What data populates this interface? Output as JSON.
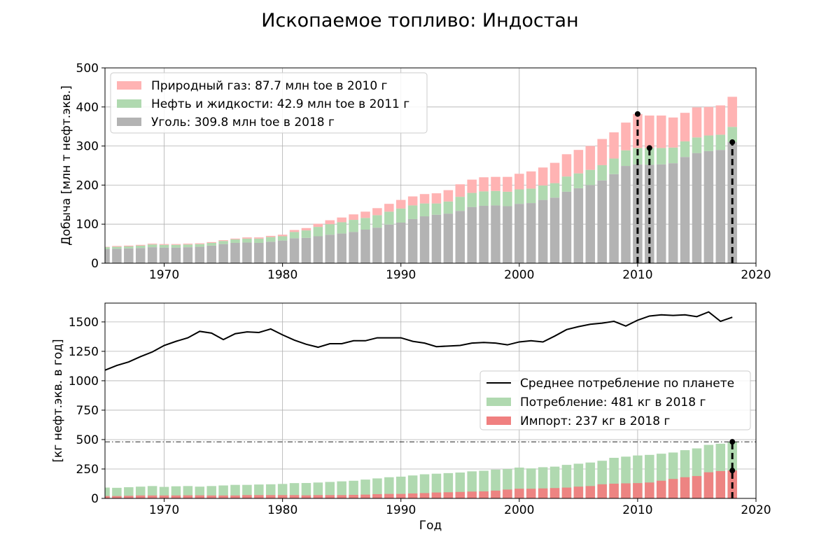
{
  "figure": {
    "title": "Ископаемое топливо: Индостан"
  },
  "chart_data": [
    {
      "type": "bar",
      "stacked": true,
      "xlim": [
        1965,
        2020
      ],
      "ylim": [
        0,
        500
      ],
      "xticks": [
        1970,
        1980,
        1990,
        2000,
        2010,
        2020
      ],
      "yticks": [
        0,
        100,
        200,
        300,
        400,
        500
      ],
      "ylabel": "Добыча [млн т нефт.экв.]",
      "xlabel": "",
      "grid": true,
      "legend_position": "top-left",
      "x": [
        1965,
        1966,
        1967,
        1968,
        1969,
        1970,
        1971,
        1972,
        1973,
        1974,
        1975,
        1976,
        1977,
        1978,
        1979,
        1980,
        1981,
        1982,
        1983,
        1984,
        1985,
        1986,
        1987,
        1988,
        1989,
        1990,
        1991,
        1992,
        1993,
        1994,
        1995,
        1996,
        1997,
        1998,
        1999,
        2000,
        2001,
        2002,
        2003,
        2004,
        2005,
        2006,
        2007,
        2008,
        2009,
        2010,
        2011,
        2012,
        2013,
        2014,
        2015,
        2016,
        2017,
        2018
      ],
      "series": [
        {
          "name": "Уголь: 309.8 млн toe в 2018 г",
          "color": "#b3b3b3",
          "values": [
            36,
            37,
            38,
            39,
            41,
            40,
            40,
            41,
            42,
            45,
            49,
            52,
            53,
            52,
            55,
            58,
            64,
            65,
            69,
            73,
            76,
            80,
            86,
            91,
            99,
            104,
            113,
            120,
            124,
            127,
            134,
            144,
            147,
            148,
            146,
            152,
            154,
            162,
            168,
            183,
            192,
            200,
            212,
            228,
            249,
            253,
            252,
            253,
            256,
            272,
            282,
            287,
            290,
            310
          ]
        },
        {
          "name": "Нефть и жидкости: 42.9 млн toe в 2011 г",
          "color": "#b0d9b0",
          "values": [
            5,
            5,
            5,
            6,
            7,
            7,
            7,
            7,
            7,
            7,
            8,
            9,
            10,
            11,
            12,
            11,
            16,
            19,
            24,
            27,
            29,
            31,
            30,
            32,
            33,
            36,
            35,
            33,
            29,
            31,
            36,
            36,
            37,
            37,
            37,
            37,
            37,
            37,
            37,
            39,
            38,
            39,
            39,
            40,
            40,
            42,
            43,
            42,
            40,
            40,
            40,
            40,
            39,
            39
          ]
        },
        {
          "name": "Природный газ: 87.7 млн toe в 2010 г",
          "color": "#ffb3b3",
          "values": [
            1,
            2,
            2,
            2,
            2,
            2,
            2,
            2,
            2,
            2,
            2,
            2,
            3,
            3,
            3,
            4,
            5,
            6,
            8,
            10,
            12,
            14,
            16,
            18,
            20,
            22,
            23,
            24,
            26,
            29,
            32,
            34,
            36,
            36,
            38,
            40,
            44,
            46,
            52,
            57,
            60,
            61,
            67,
            67,
            71,
            87,
            83,
            83,
            77,
            73,
            77,
            73,
            75,
            77
          ]
        }
      ],
      "annotations": [
        {
          "year": 2010,
          "value": 382
        },
        {
          "year": 2011,
          "value": 295
        },
        {
          "year": 2018,
          "value": 310
        }
      ]
    },
    {
      "type": "bar+line",
      "xlim": [
        1965,
        2020
      ],
      "ylim": [
        0,
        1660
      ],
      "xticks": [
        1970,
        1980,
        1990,
        2000,
        2010,
        2020
      ],
      "yticks": [
        0,
        250,
        500,
        750,
        1000,
        1250,
        1500
      ],
      "ylabel": "[кг нефт.экв. в год]",
      "xlabel": "Год",
      "grid": true,
      "legend_position": "center-right",
      "reference_line": 481,
      "x": [
        1965,
        1966,
        1967,
        1968,
        1969,
        1970,
        1971,
        1972,
        1973,
        1974,
        1975,
        1976,
        1977,
        1978,
        1979,
        1980,
        1981,
        1982,
        1983,
        1984,
        1985,
        1986,
        1987,
        1988,
        1989,
        1990,
        1991,
        1992,
        1993,
        1994,
        1995,
        1996,
        1997,
        1998,
        1999,
        2000,
        2001,
        2002,
        2003,
        2004,
        2005,
        2006,
        2007,
        2008,
        2009,
        2010,
        2011,
        2012,
        2013,
        2014,
        2015,
        2016,
        2017,
        2018
      ],
      "series": [
        {
          "name": "Среднее потребление по планете",
          "type": "line",
          "color": "#000000",
          "values": [
            1090,
            1130,
            1160,
            1205,
            1245,
            1300,
            1335,
            1365,
            1420,
            1405,
            1350,
            1400,
            1415,
            1410,
            1440,
            1390,
            1345,
            1310,
            1285,
            1315,
            1315,
            1340,
            1340,
            1365,
            1365,
            1365,
            1335,
            1320,
            1290,
            1295,
            1300,
            1320,
            1325,
            1320,
            1305,
            1330,
            1340,
            1330,
            1380,
            1435,
            1460,
            1480,
            1490,
            1505,
            1465,
            1515,
            1550,
            1560,
            1555,
            1560,
            1545,
            1585,
            1505,
            1540
          ]
        },
        {
          "name": "Потребление: 481 кг в 2018 г",
          "type": "bar",
          "color": "#b0d9b0",
          "values": [
            92,
            90,
            95,
            100,
            105,
            98,
            103,
            105,
            100,
            105,
            110,
            115,
            115,
            118,
            120,
            123,
            130,
            131,
            135,
            140,
            145,
            150,
            160,
            170,
            180,
            185,
            195,
            205,
            210,
            215,
            220,
            230,
            235,
            245,
            250,
            262,
            255,
            265,
            270,
            285,
            295,
            305,
            320,
            345,
            355,
            365,
            370,
            380,
            390,
            410,
            425,
            455,
            465,
            481
          ]
        },
        {
          "name": "Импорт: 237 кг в 2018 г",
          "type": "bar",
          "color": "#f08080",
          "values": [
            20,
            20,
            22,
            25,
            25,
            25,
            25,
            26,
            26,
            25,
            25,
            25,
            28,
            28,
            28,
            28,
            28,
            26,
            28,
            28,
            28,
            30,
            32,
            36,
            38,
            38,
            42,
            45,
            50,
            52,
            55,
            58,
            60,
            66,
            75,
            82,
            82,
            85,
            88,
            92,
            100,
            105,
            120,
            125,
            128,
            130,
            135,
            150,
            165,
            180,
            190,
            222,
            232,
            237
          ]
        }
      ],
      "annotations": [
        {
          "year": 2018,
          "values": [
            237,
            481
          ]
        }
      ]
    }
  ]
}
